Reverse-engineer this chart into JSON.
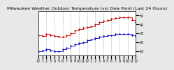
{
  "title": "Milwaukee Weather Outdoor Temperature (vs) Dew Point (Last 24 Hours)",
  "title_fontsize": 4.5,
  "bg_color": "#e8e8e8",
  "plot_bg_color": "#ffffff",
  "temp_color": "#cc0000",
  "dew_color": "#0000cc",
  "xlabel_fontsize": 3.5,
  "ylabel_fontsize": 3.5,
  "hours": [
    0,
    1,
    2,
    3,
    4,
    5,
    6,
    7,
    8,
    9,
    10,
    11,
    12,
    13,
    14,
    15,
    16,
    17,
    18,
    19,
    20,
    21,
    22,
    23,
    24
  ],
  "temp": [
    28,
    27,
    29,
    28,
    27,
    26,
    26,
    28,
    30,
    33,
    35,
    36,
    37,
    38,
    40,
    42,
    44,
    45,
    46,
    47,
    48,
    48,
    48,
    45,
    42
  ],
  "dew": [
    10,
    11,
    12,
    11,
    10,
    10,
    12,
    14,
    16,
    18,
    19,
    20,
    22,
    23,
    25,
    26,
    27,
    28,
    28,
    29,
    29,
    29,
    29,
    28,
    27
  ],
  "ylim_min": 5,
  "ylim_max": 55,
  "yticks": [
    10,
    20,
    30,
    40,
    50
  ],
  "xtick_labels": [
    "12",
    "1",
    "2",
    "3",
    "4",
    "5",
    "6",
    "7",
    "8",
    "9",
    "10",
    "11",
    "12",
    "1",
    "2",
    "3",
    "4",
    "5",
    "6",
    "7",
    "8",
    "9",
    "10",
    "11",
    "12"
  ],
  "grid_color": "#aaaaaa",
  "right_axis_color": "#000000",
  "markersize": 1.5
}
